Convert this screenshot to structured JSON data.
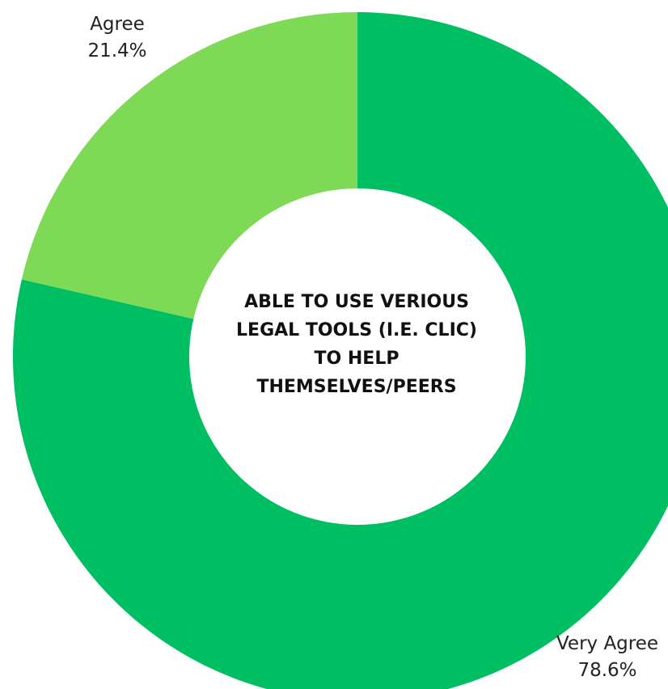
{
  "chart_data": {
    "type": "pie",
    "variant": "donut",
    "title": "ABLE TO USE VERIOUS\nLEGAL TOOLS (I.E. CLIC)\nTO HELP\nTHEMSELVES/PEERS",
    "categories": [
      "Very Agree",
      "Agree"
    ],
    "values": [
      78.6,
      21.4
    ],
    "value_labels": [
      "78.6%",
      "21.4%"
    ],
    "colors": [
      "#00bf63",
      "#7ed957"
    ],
    "start": "12 o'clock",
    "direction": "clockwise",
    "legend": "none"
  }
}
